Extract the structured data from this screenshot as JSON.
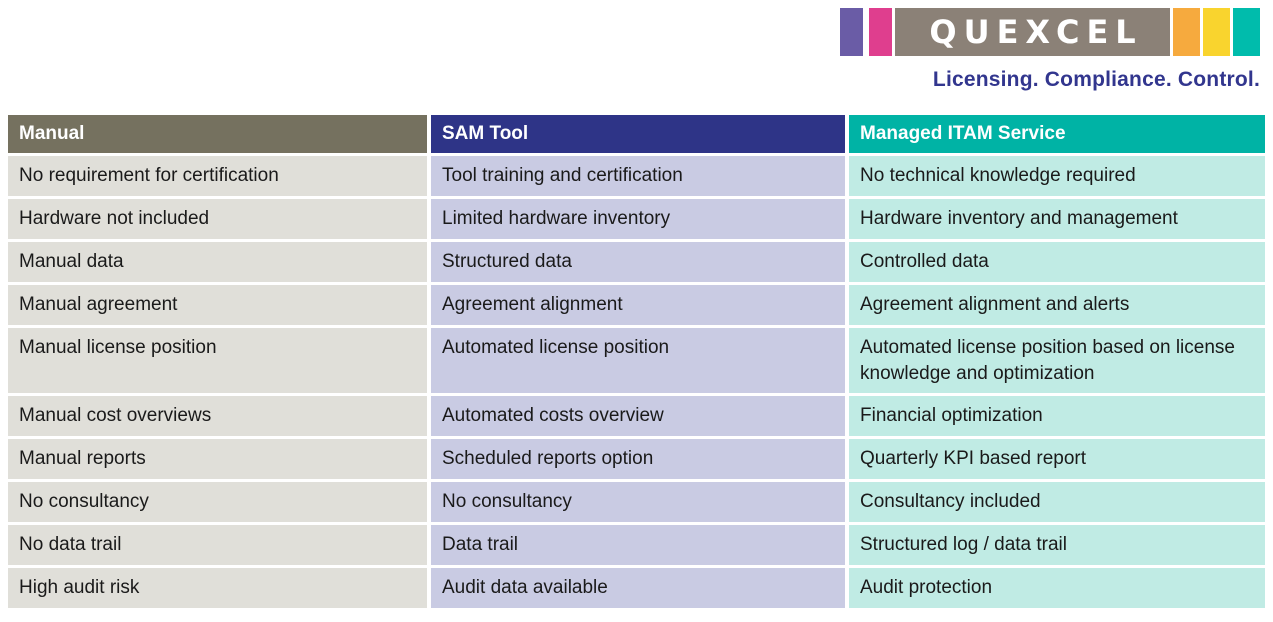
{
  "logo": {
    "brand": "QUEXCEL",
    "tagline": "Licensing. Compliance. Control.",
    "colors": {
      "purple": "#6A5CA6",
      "pink": "#DF3E8E",
      "gray": "#8B8177",
      "orange": "#F6AA3E",
      "yellow": "#F9D42E",
      "teal": "#00BCAC",
      "tagline_blue": "#32368E"
    }
  },
  "table": {
    "columns": [
      {
        "label": "Manual",
        "header_bg": "#75715F",
        "row_bg": "#E0DFD9"
      },
      {
        "label": "SAM Tool",
        "header_bg": "#2E3487",
        "row_bg": "#C9CBE3"
      },
      {
        "label": "Managed ITAM Service",
        "header_bg": "#00B3A5",
        "row_bg": "#C0EBE4"
      }
    ],
    "rows": [
      [
        "No requirement for certification",
        "Tool training and certification",
        "No technical knowledge required"
      ],
      [
        "Hardware not included",
        "Limited hardware inventory",
        "Hardware inventory and management"
      ],
      [
        "Manual data",
        "Structured data",
        "Controlled data"
      ],
      [
        "Manual agreement",
        "Agreement alignment",
        "Agreement alignment and alerts"
      ],
      [
        "Manual license position",
        "Automated license position",
        "Automated license position based on license knowledge and optimization"
      ],
      [
        "Manual cost overviews",
        "Automated costs overview",
        "Financial optimization"
      ],
      [
        "Manual reports",
        "Scheduled reports option",
        "Quarterly KPI based report"
      ],
      [
        "No consultancy",
        "No consultancy",
        "Consultancy included"
      ],
      [
        "No data trail",
        "Data trail",
        "Structured log / data trail"
      ],
      [
        "High audit risk",
        "Audit data available",
        "Audit protection"
      ]
    ]
  }
}
